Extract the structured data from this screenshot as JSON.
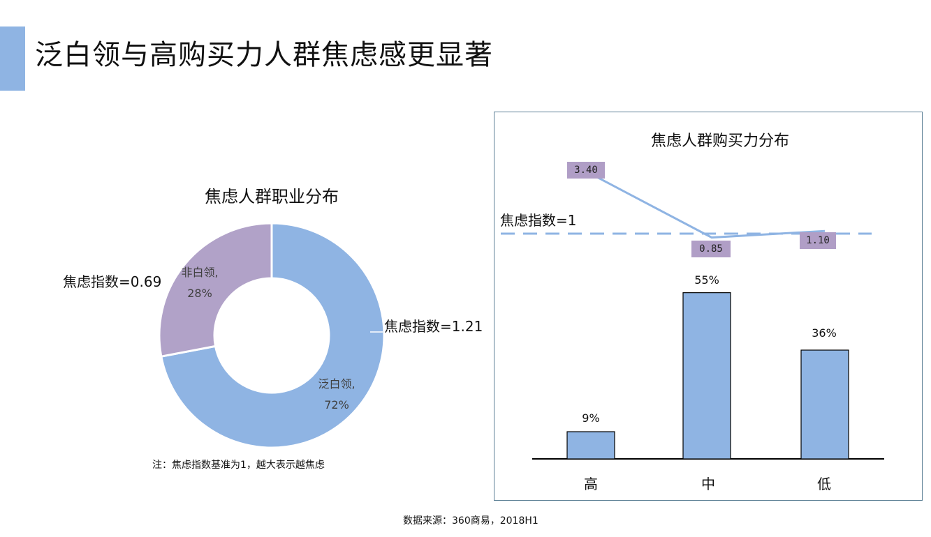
{
  "page": {
    "title": "泛白领与高购买力人群焦虑感更显著",
    "accent_color": "#8fb4e3",
    "source": "数据来源：360商易，2018H1"
  },
  "chart_data": [
    {
      "type": "pie",
      "title": "焦虑人群职业分布",
      "slices": [
        {
          "name": "泛白领,",
          "pct_label": "72%",
          "value": 72,
          "color": "#8fb4e3",
          "index_label": "焦虑指数=1.21",
          "index_value": 1.21
        },
        {
          "name": "非白领,",
          "pct_label": "28%",
          "value": 28,
          "color": "#b1a2c8",
          "index_label": "焦虑指数=0.69",
          "index_value": 0.69
        }
      ],
      "note": "注：焦虑指数基准为1，越大表示越焦虑"
    },
    {
      "type": "bar",
      "title": "焦虑人群购买力分布",
      "categories": [
        "高",
        "中",
        "低"
      ],
      "values": [
        9,
        55,
        36
      ],
      "value_labels": [
        "9%",
        "55%",
        "36%"
      ],
      "bar_color": "#8fb4e3",
      "ylim": [
        0,
        60
      ],
      "line_series": {
        "values": [
          3.4,
          0.85,
          1.1
        ],
        "labels": [
          "3.40",
          "0.85",
          "1.10"
        ],
        "color": "#8fb4e3",
        "label_bg": "#b09ec6"
      },
      "threshold": {
        "label": "焦虑指数=1",
        "value": 1,
        "style": "dashed"
      }
    }
  ]
}
